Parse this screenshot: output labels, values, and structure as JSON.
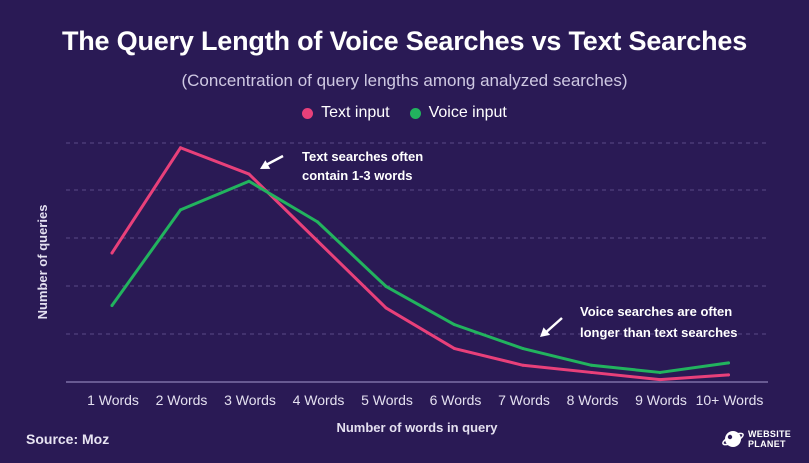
{
  "chart_data": {
    "type": "line",
    "title": "The Query Length of Voice Searches vs Text Searches",
    "subtitle": "(Concentration of query lengths among analyzed searches)",
    "xlabel": "Number of words in query",
    "ylabel": "Number of queries",
    "categories": [
      "1 Words",
      "2 Words",
      "3 Words",
      "4 Words",
      "5 Words",
      "6 Words",
      "7 Words",
      "8 Words",
      "9 Words",
      "10+ Words"
    ],
    "ylim": [
      0,
      100
    ],
    "grid": true,
    "legend_position": "top-center",
    "series": [
      {
        "name": "Text input",
        "color": "#e8407a",
        "values": [
          54,
          98,
          87,
          59,
          31,
          14,
          7,
          4,
          1,
          3
        ]
      },
      {
        "name": "Voice input",
        "color": "#22b35e",
        "values": [
          32,
          72,
          84,
          67,
          40,
          24,
          14,
          7,
          4,
          8
        ]
      }
    ],
    "annotations": [
      {
        "line1": "Text searches often",
        "line2": "contain 1-3 words"
      },
      {
        "line1": "Voice searches are often",
        "line2": "longer than text searches"
      }
    ]
  },
  "footer": {
    "source": "Source: Moz",
    "logo_line1": "WEBSITE",
    "logo_line2": "PLANET"
  }
}
